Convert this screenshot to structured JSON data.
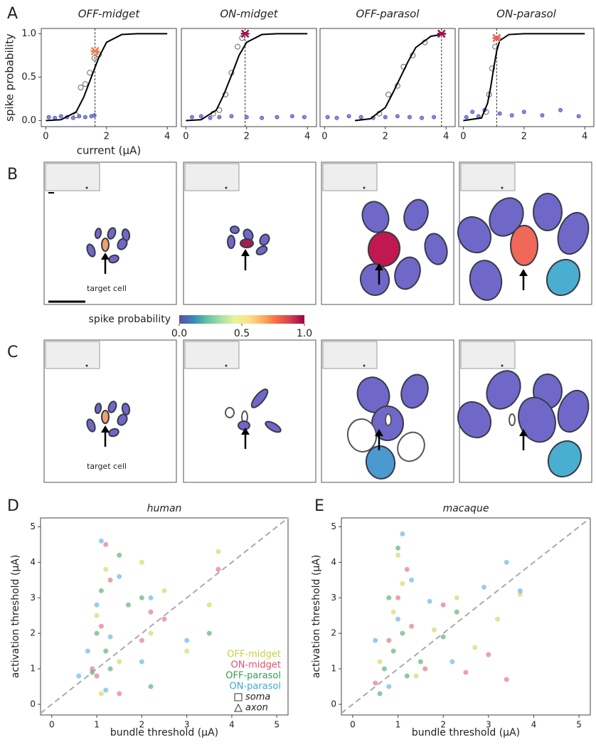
{
  "panel_labels": [
    "A",
    "B",
    "C",
    "D",
    "E"
  ],
  "annotations": {
    "target_cell": [
      "target cell",
      "target cell"
    ]
  },
  "chart_data": [
    {
      "type": "sigmoid",
      "title": "OFF-midget",
      "xlabel": "current (μA)",
      "ylabel": "spike probability",
      "xlim": [
        -0.15,
        4.3
      ],
      "ylim": [
        -0.07,
        1.06
      ],
      "xticks": [
        0,
        2,
        4
      ],
      "yticks": [
        {
          "value": 0,
          "label": "0.0"
        },
        {
          "value": 0.5,
          "label": "0.5"
        },
        {
          "value": 1,
          "label": "1.0"
        }
      ],
      "threshold": 1.62,
      "marker": {
        "x": 1.62,
        "y": 0.8,
        "color": "#f08040"
      },
      "series": [
        {
          "style": "dots",
          "color": "#5a5ac8",
          "x": [
            0.1,
            0.3,
            0.5,
            0.7,
            0.9,
            1.1,
            1.3,
            1.5,
            1.6
          ],
          "values": [
            0.04,
            0.03,
            0.05,
            0.04,
            0.03,
            0.05,
            0.04,
            0.05,
            0.06
          ]
        },
        {
          "style": "open",
          "color": "#666666",
          "x": [
            1.0,
            1.15,
            1.3,
            1.45,
            1.6,
            1.75
          ],
          "values": [
            0.06,
            0.38,
            0.42,
            0.55,
            0.72,
            0.76
          ]
        },
        {
          "style": "line",
          "color": "#000000",
          "x": [
            0,
            0.5,
            1,
            1.25,
            1.5,
            1.75,
            2,
            2.5,
            3,
            4
          ],
          "values": [
            0,
            0.01,
            0.1,
            0.27,
            0.5,
            0.73,
            0.9,
            0.99,
            1,
            1
          ]
        }
      ]
    },
    {
      "type": "sigmoid",
      "title": "ON-midget",
      "xlim": [
        -0.15,
        4.3
      ],
      "ylim": [
        -0.07,
        1.06
      ],
      "xticks": [
        0,
        2,
        4
      ],
      "threshold": 1.95,
      "marker": {
        "x": 1.95,
        "y": 1.0,
        "color": "#a01050"
      },
      "series": [
        {
          "style": "dots",
          "color": "#5a5ac8",
          "x": [
            0.2,
            0.5,
            0.8,
            1.1,
            1.5,
            2.0,
            2.5,
            3.0,
            3.5,
            3.9
          ],
          "values": [
            0.04,
            0.05,
            0.03,
            0.04,
            0.05,
            0.04,
            0.03,
            0.04,
            0.05,
            0.04
          ]
        },
        {
          "style": "open",
          "color": "#666666",
          "x": [
            0.9,
            1.1,
            1.3,
            1.5,
            1.7,
            1.85
          ],
          "values": [
            0.08,
            0.12,
            0.3,
            0.55,
            0.85,
            0.95
          ]
        },
        {
          "style": "line",
          "color": "#000000",
          "x": [
            0,
            0.5,
            1,
            1.25,
            1.5,
            1.75,
            2,
            2.5,
            3,
            4
          ],
          "values": [
            0,
            0.01,
            0.12,
            0.3,
            0.52,
            0.75,
            0.9,
            0.99,
            1,
            1
          ]
        }
      ]
    },
    {
      "type": "sigmoid",
      "title": "OFF-parasol",
      "xlim": [
        -0.15,
        4.3
      ],
      "ylim": [
        -0.07,
        1.06
      ],
      "xticks": [
        0,
        2,
        4
      ],
      "threshold": 3.85,
      "marker": {
        "x": 3.85,
        "y": 1.0,
        "color": "#a01050"
      },
      "series": [
        {
          "style": "dots",
          "color": "#5a5ac8",
          "x": [
            0.1,
            0.4,
            0.8,
            1.2,
            1.6,
            2.0,
            2.4,
            2.8,
            3.2,
            3.6
          ],
          "values": [
            0.04,
            0.03,
            0.05,
            0.04,
            0.03,
            0.04,
            0.05,
            0.04,
            0.03,
            0.04
          ]
        },
        {
          "style": "open",
          "color": "#666666",
          "x": [
            1.8,
            2.1,
            2.4,
            2.6,
            2.9,
            3.3
          ],
          "values": [
            0.08,
            0.3,
            0.4,
            0.62,
            0.75,
            0.9
          ]
        },
        {
          "style": "line",
          "color": "#000000",
          "x": [
            1,
            1.5,
            2,
            2.25,
            2.5,
            2.75,
            3,
            3.5,
            4
          ],
          "values": [
            0,
            0.02,
            0.15,
            0.32,
            0.5,
            0.68,
            0.84,
            0.97,
            1
          ]
        }
      ]
    },
    {
      "type": "sigmoid",
      "title": "ON-parasol",
      "xlim": [
        -0.15,
        4.3
      ],
      "ylim": [
        -0.07,
        1.06
      ],
      "xticks": [
        0,
        2,
        4
      ],
      "threshold": 1.1,
      "marker": {
        "x": 1.1,
        "y": 0.95,
        "color": "#f06050"
      },
      "series": [
        {
          "style": "dots",
          "color": "#5a5ac8",
          "x": [
            0.1,
            0.3,
            0.5,
            0.7,
            1.2,
            1.6,
            2.0,
            2.6,
            3.2,
            3.8
          ],
          "values": [
            0.04,
            0.1,
            0.05,
            0.12,
            0.08,
            0.06,
            0.1,
            0.06,
            0.12,
            0.05
          ]
        },
        {
          "style": "open",
          "color": "#666666",
          "x": [
            0.75,
            0.85,
            0.95,
            1.05
          ],
          "values": [
            0.1,
            0.3,
            0.6,
            0.85
          ]
        },
        {
          "style": "line",
          "color": "#000000",
          "x": [
            0,
            0.6,
            0.8,
            0.9,
            1.0,
            1.1,
            1.2,
            1.5,
            2,
            4
          ],
          "values": [
            0,
            0.03,
            0.2,
            0.38,
            0.6,
            0.8,
            0.92,
            0.99,
            1,
            1
          ]
        }
      ]
    },
    {
      "type": "colorbar",
      "label": "spike probability",
      "xlim": [
        0,
        1
      ],
      "xticks": [
        {
          "value": 0,
          "label": "0.0"
        },
        {
          "value": 0.5,
          "label": "0.5"
        },
        {
          "value": 1,
          "label": "1.0"
        }
      ],
      "colors": [
        "#5e4fa2",
        "#3288bd",
        "#66c2a5",
        "#abdda4",
        "#e6f598",
        "#fee08b",
        "#fdae61",
        "#f46d43",
        "#d53e4f",
        "#9e0142"
      ]
    },
    {
      "type": "scatter",
      "title": "human",
      "xlabel": "bundle threshold (μA)",
      "ylabel": "activation threshold (μA)",
      "xlim": [
        -0.25,
        5.25
      ],
      "ylim": [
        -0.3,
        5.25
      ],
      "xticks": [
        0,
        1,
        2,
        3,
        4,
        5
      ],
      "yticks": [
        0,
        1,
        2,
        3,
        4,
        5
      ],
      "diagonal": true,
      "legend": "lower right",
      "marker_legend": [
        {
          "name": "soma",
          "shape": "square"
        },
        {
          "name": "axon",
          "shape": "triangle"
        }
      ],
      "series": [
        {
          "name": "OFF-midget",
          "color": "#c8d040",
          "x": [
            1.0,
            1.2,
            1.5,
            2.0,
            2.2,
            2.5,
            3.0,
            3.5,
            3.7,
            1.1
          ],
          "values": [
            2.5,
            3.8,
            1.2,
            4.0,
            2.0,
            3.2,
            1.5,
            2.8,
            4.3,
            0.3
          ]
        },
        {
          "name": "ON-midget",
          "color": "#e05070",
          "x": [
            0.9,
            1.1,
            1.3,
            1.5,
            2.0,
            2.2,
            1.2,
            2.5,
            3.7,
            1.0
          ],
          "values": [
            1.0,
            2.2,
            3.5,
            0.3,
            1.8,
            2.6,
            4.5,
            2.4,
            3.8,
            0.8
          ]
        },
        {
          "name": "OFF-parasol",
          "color": "#30a050",
          "x": [
            1.0,
            1.2,
            1.5,
            1.7,
            2.0,
            2.2,
            1.1,
            0.9,
            3.5,
            1.3
          ],
          "values": [
            2.0,
            1.5,
            4.2,
            2.8,
            3.0,
            0.5,
            3.2,
            0.9,
            2.0,
            1.0
          ]
        },
        {
          "name": "ON-parasol",
          "color": "#40a8d8",
          "x": [
            0.8,
            1.0,
            1.2,
            1.5,
            2.0,
            1.1,
            0.6,
            1.3,
            2.2,
            3.0
          ],
          "values": [
            1.5,
            2.8,
            0.4,
            3.6,
            1.2,
            4.6,
            0.8,
            1.9,
            3.0,
            1.8
          ]
        }
      ]
    },
    {
      "type": "scatter",
      "title": "macaque",
      "xlabel": "bundle threshold (μA)",
      "ylabel": "activation threshold (μA)",
      "xlim": [
        -0.25,
        5.25
      ],
      "ylim": [
        -0.3,
        5.25
      ],
      "xticks": [
        0,
        1,
        2,
        3,
        4,
        5
      ],
      "yticks": [
        0,
        1,
        2,
        3,
        4,
        5
      ],
      "diagonal": true,
      "series": [
        {
          "color": "#c8d040",
          "x": [
            0.6,
            0.9,
            1.1,
            1.4,
            1.8,
            2.3,
            2.7,
            3.2,
            3.7,
            1.0
          ],
          "values": [
            1.2,
            2.6,
            3.4,
            0.8,
            2.1,
            3.0,
            1.6,
            2.4,
            3.1,
            4.2
          ]
        },
        {
          "color": "#e05070",
          "x": [
            0.5,
            0.8,
            1.0,
            1.3,
            1.6,
            2.0,
            2.5,
            3.0,
            3.4,
            1.2
          ],
          "values": [
            0.6,
            1.8,
            3.0,
            2.2,
            1.0,
            2.8,
            0.9,
            1.4,
            0.7,
            3.8
          ]
        },
        {
          "color": "#30a050",
          "x": [
            0.6,
            0.7,
            0.9,
            1.1,
            1.2,
            1.5,
            0.8,
            2.0,
            1.0,
            2.3
          ],
          "values": [
            0.3,
            1.0,
            1.5,
            2.0,
            0.8,
            1.2,
            3.0,
            1.9,
            4.4,
            2.6
          ]
        },
        {
          "color": "#40a8d8",
          "x": [
            0.5,
            0.8,
            1.0,
            1.3,
            1.7,
            2.2,
            2.9,
            3.4,
            3.7,
            1.1
          ],
          "values": [
            1.8,
            0.5,
            2.4,
            3.5,
            2.9,
            1.2,
            3.3,
            4.0,
            3.2,
            4.8
          ]
        }
      ]
    }
  ]
}
